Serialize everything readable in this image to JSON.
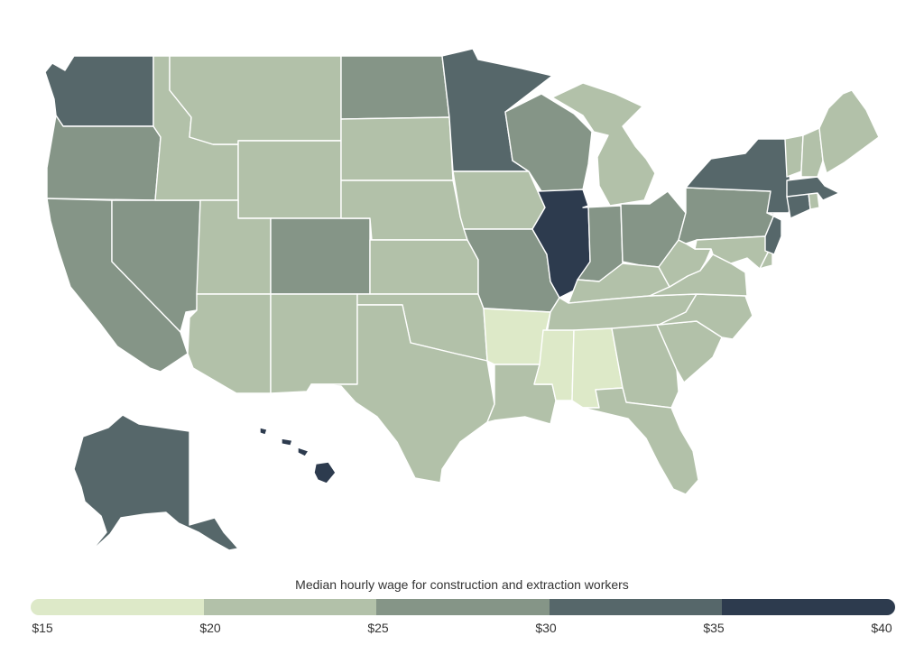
{
  "legend": {
    "title": "Median hourly wage for construction and extraction workers",
    "bins": [
      {
        "min": 15,
        "max": 20,
        "color": "#dde9c8"
      },
      {
        "min": 20,
        "max": 25,
        "color": "#b2c1a9"
      },
      {
        "min": 25,
        "max": 30,
        "color": "#859587"
      },
      {
        "min": 30,
        "max": 35,
        "color": "#56676a"
      },
      {
        "min": 35,
        "max": 40,
        "color": "#2d3b4e"
      }
    ],
    "ticks": [
      "$15",
      "$20",
      "$25",
      "$30",
      "$35",
      "$40"
    ]
  },
  "map_data": {
    "type": "choropleth",
    "region": "United States",
    "unit": "USD per hour",
    "states": [
      {
        "name": "Washington",
        "bin": 3
      },
      {
        "name": "Oregon",
        "bin": 2
      },
      {
        "name": "California",
        "bin": 2
      },
      {
        "name": "Nevada",
        "bin": 2
      },
      {
        "name": "Idaho",
        "bin": 1
      },
      {
        "name": "Montana",
        "bin": 1
      },
      {
        "name": "Wyoming",
        "bin": 1
      },
      {
        "name": "Utah",
        "bin": 1
      },
      {
        "name": "Arizona",
        "bin": 1
      },
      {
        "name": "Colorado",
        "bin": 2
      },
      {
        "name": "New Mexico",
        "bin": 1
      },
      {
        "name": "North Dakota",
        "bin": 2
      },
      {
        "name": "South Dakota",
        "bin": 1
      },
      {
        "name": "Nebraska",
        "bin": 1
      },
      {
        "name": "Kansas",
        "bin": 1
      },
      {
        "name": "Oklahoma",
        "bin": 1
      },
      {
        "name": "Texas",
        "bin": 1
      },
      {
        "name": "Minnesota",
        "bin": 3
      },
      {
        "name": "Iowa",
        "bin": 1
      },
      {
        "name": "Missouri",
        "bin": 2
      },
      {
        "name": "Arkansas",
        "bin": 0
      },
      {
        "name": "Louisiana",
        "bin": 1
      },
      {
        "name": "Wisconsin",
        "bin": 2
      },
      {
        "name": "Illinois",
        "bin": 4
      },
      {
        "name": "Michigan",
        "bin": 1
      },
      {
        "name": "Indiana",
        "bin": 2
      },
      {
        "name": "Ohio",
        "bin": 2
      },
      {
        "name": "Kentucky",
        "bin": 1
      },
      {
        "name": "Tennessee",
        "bin": 1
      },
      {
        "name": "Mississippi",
        "bin": 0
      },
      {
        "name": "Alabama",
        "bin": 0
      },
      {
        "name": "Georgia",
        "bin": 1
      },
      {
        "name": "Florida",
        "bin": 1
      },
      {
        "name": "South Carolina",
        "bin": 1
      },
      {
        "name": "North Carolina",
        "bin": 1
      },
      {
        "name": "Virginia",
        "bin": 1
      },
      {
        "name": "West Virginia",
        "bin": 1
      },
      {
        "name": "Pennsylvania",
        "bin": 2
      },
      {
        "name": "New York",
        "bin": 3
      },
      {
        "name": "Maryland",
        "bin": 1
      },
      {
        "name": "Delaware",
        "bin": 1
      },
      {
        "name": "New Jersey",
        "bin": 3
      },
      {
        "name": "Connecticut",
        "bin": 3
      },
      {
        "name": "Rhode Island",
        "bin": 1
      },
      {
        "name": "Massachusetts",
        "bin": 3
      },
      {
        "name": "Vermont",
        "bin": 1
      },
      {
        "name": "New Hampshire",
        "bin": 1
      },
      {
        "name": "Maine",
        "bin": 1
      },
      {
        "name": "Alaska",
        "bin": 3
      },
      {
        "name": "Hawaii",
        "bin": 4
      }
    ]
  }
}
